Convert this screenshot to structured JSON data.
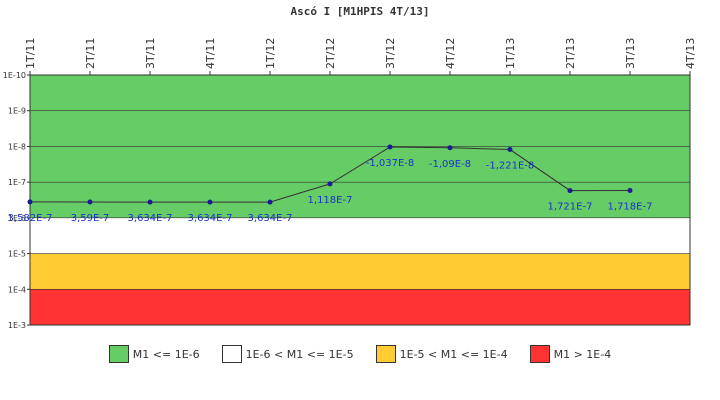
{
  "chart_data": {
    "type": "line",
    "title": "Ascó I [M1HPIS 4T/13]",
    "categories": [
      "1T/11",
      "2T/11",
      "3T/11",
      "4T/11",
      "1T/12",
      "2T/12",
      "3T/12",
      "4T/12",
      "1T/13",
      "2T/13",
      "3T/13",
      "4T/13"
    ],
    "y_scale": "log",
    "y_inverted": true,
    "y_range": [
      1e-10,
      0.001
    ],
    "y_ticks": [
      "1E-10",
      "1E-9",
      "1E-8",
      "1E-7",
      "1E-6",
      "1E-5",
      "1E-4",
      "1E-3"
    ],
    "series": [
      {
        "values": [
          3.582e-07,
          3.59e-07,
          3.634e-07,
          3.634e-07,
          3.634e-07,
          1.118e-07,
          -1.037e-08,
          -1.09e-08,
          -1.221e-08,
          1.721e-07,
          1.718e-07,
          null
        ],
        "labels": [
          "3,582E-7",
          "3,59E-7",
          "3,634E-7",
          "3,634E-7",
          "3,634E-7",
          "1,118E-7",
          "-1,037E-8",
          "-1,09E-8",
          "-1,221E-8",
          "1,721E-7",
          "1,718E-7",
          ""
        ]
      }
    ],
    "bands": [
      {
        "from": 1e-10,
        "to": 1e-06,
        "color": "#66cc66",
        "label": "M1 <= 1E-6"
      },
      {
        "from": 1e-06,
        "to": 1e-05,
        "color": "#ffffff",
        "label": "1E-6 < M1 <= 1E-5"
      },
      {
        "from": 1e-05,
        "to": 0.0001,
        "color": "#ffcc33",
        "label": "1E-5 < M1 <= 1E-4"
      },
      {
        "from": 0.0001,
        "to": 0.001,
        "color": "#ff3333",
        "label": "M1 > 1E-4"
      }
    ],
    "line_color": "#333333",
    "marker_color": "#1a1a99",
    "label_color": "#1a33cc"
  }
}
